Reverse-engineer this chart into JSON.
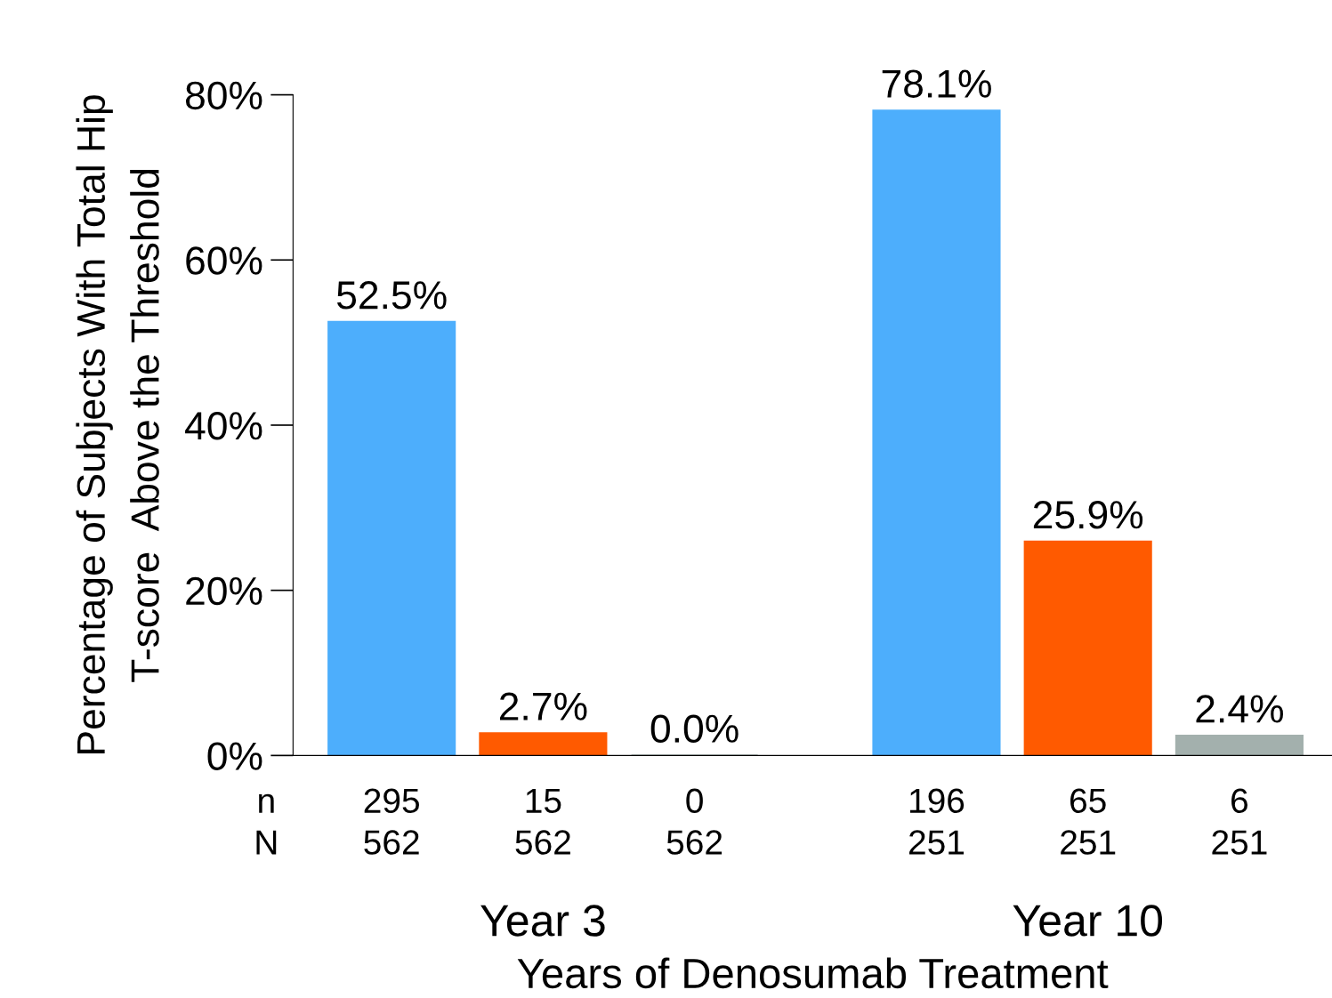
{
  "chart_data": {
    "type": "bar",
    "xlabel": "Years of Denosumab Treatment",
    "ylabel": "Percentage of Subjects With Total Hip\nT-score  Above the Threshold",
    "categories": [
      "Year 3",
      "Year 10"
    ],
    "series": [
      {
        "color": "#4daefc",
        "values": [
          52.5,
          78.1
        ],
        "value_labels": [
          "52.5%",
          "78.1%"
        ]
      },
      {
        "color": "#ff5a00",
        "values": [
          2.7,
          25.9
        ],
        "value_labels": [
          "2.7%",
          "25.9%"
        ]
      },
      {
        "color": "#a3b0ad",
        "values": [
          0.0,
          2.4
        ],
        "value_labels": [
          "0.0%",
          "2.4%"
        ]
      }
    ],
    "ylim": [
      0,
      80
    ],
    "yticks": [
      {
        "value": 0,
        "label": "0%"
      },
      {
        "value": 20,
        "label": "20%"
      },
      {
        "value": 40,
        "label": "40%"
      },
      {
        "value": 60,
        "label": "60%"
      },
      {
        "value": 80,
        "label": "80%"
      }
    ],
    "annotations": [
      "n",
      "N",
      "295",
      "562",
      "15",
      "562",
      "0",
      "562",
      "196",
      "251",
      "65",
      "251",
      "6",
      "251"
    ],
    "grid": false,
    "legend": false
  }
}
